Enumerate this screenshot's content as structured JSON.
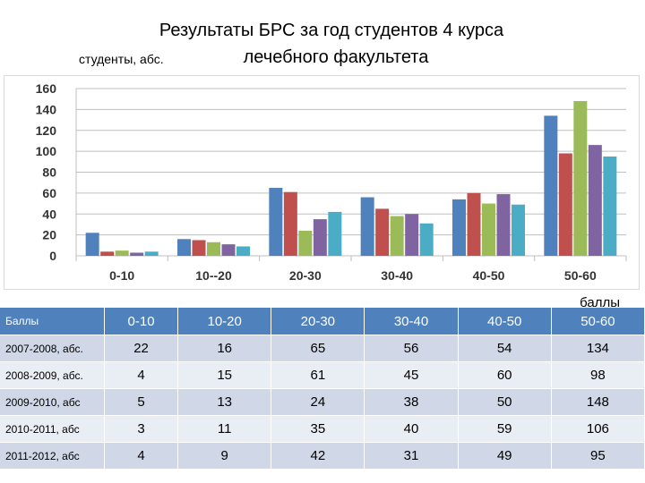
{
  "title": {
    "line1": "Результаты БРС за год студентов 4 курса",
    "line2": "лечебного факультета"
  },
  "chart_data": {
    "type": "bar",
    "ylabel": "студенты, абс.",
    "xlabel": "баллы",
    "categories": [
      "0-10",
      "10--20",
      "20-30",
      "30-40",
      "40-50",
      "50-60"
    ],
    "ylim": [
      0,
      160
    ],
    "yticks": [
      0,
      20,
      40,
      60,
      80,
      100,
      120,
      140,
      160
    ],
    "grid": true,
    "series": [
      {
        "values": [
          22,
          16,
          65,
          56,
          54,
          134
        ],
        "color": "#4f81bd"
      },
      {
        "values": [
          4,
          15,
          61,
          45,
          60,
          98
        ],
        "color": "#c0504d"
      },
      {
        "values": [
          5,
          13,
          24,
          38,
          50,
          148
        ],
        "color": "#9bbb59"
      },
      {
        "values": [
          3,
          11,
          35,
          40,
          59,
          106
        ],
        "color": "#8064a2"
      },
      {
        "values": [
          4,
          9,
          42,
          31,
          49,
          95
        ],
        "color": "#4bacc6"
      }
    ]
  },
  "table": {
    "header_label": "Баллы",
    "columns": [
      "0-10",
      "10-20",
      "20-30",
      "30-40",
      "40-50",
      "50-60"
    ],
    "rows": [
      {
        "label": "2007-2008, абс.",
        "values": [
          "22",
          "16",
          "65",
          "56",
          "54",
          "134"
        ]
      },
      {
        "label": "2008-2009, абс.",
        "values": [
          "4",
          "15",
          "61",
          "45",
          "60",
          "98"
        ]
      },
      {
        "label": "2009-2010, абс",
        "values": [
          "5",
          "13",
          "24",
          "38",
          "50",
          "148"
        ]
      },
      {
        "label": "2010-2011, абс",
        "values": [
          "3",
          "11",
          "35",
          "40",
          "59",
          "106"
        ]
      },
      {
        "label": "2011-2012, абс",
        "values": [
          "4",
          "9",
          "42",
          "31",
          "49",
          "95"
        ]
      }
    ]
  }
}
